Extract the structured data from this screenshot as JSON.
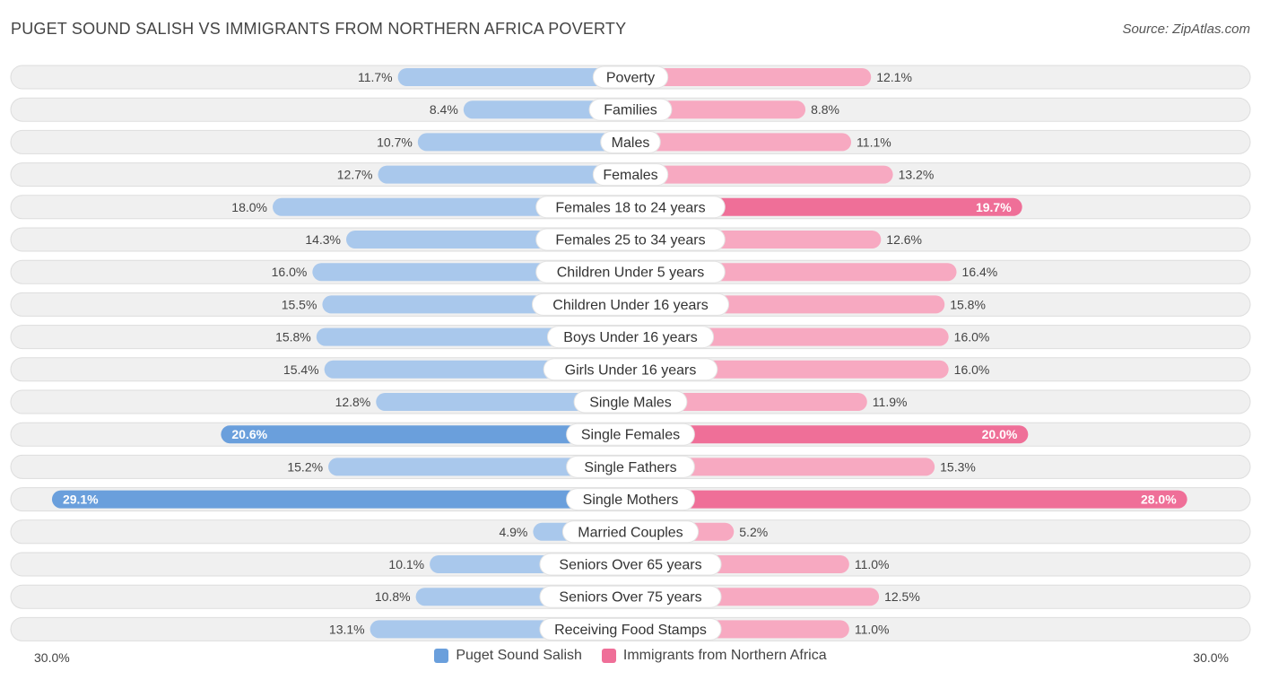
{
  "header": {
    "title": "PUGET SOUND SALISH VS IMMIGRANTS FROM NORTHERN AFRICA POVERTY",
    "source": "Source: ZipAtlas.com"
  },
  "colors": {
    "left_base": "#a9c8ec",
    "left_strong": "#6a9fdc",
    "right_base": "#f7a9c1",
    "right_strong": "#ef6f98",
    "row_bg": "#f0f0f0",
    "row_border": "#dddddd"
  },
  "axis": {
    "left_label": "30.0%",
    "right_label": "30.0%"
  },
  "legend": {
    "left": "Puget Sound Salish",
    "right": "Immigrants from Northern Africa"
  },
  "chart_data": {
    "type": "bar",
    "orientation": "horizontal-diverging",
    "title": "PUGET SOUND SALISH VS IMMIGRANTS FROM NORTHERN AFRICA POVERTY",
    "xlim": [
      -30,
      30
    ],
    "categories": [
      "Poverty",
      "Families",
      "Males",
      "Females",
      "Females 18 to 24 years",
      "Females 25 to 34 years",
      "Children Under 5 years",
      "Children Under 16 years",
      "Boys Under 16 years",
      "Girls Under 16 years",
      "Single Males",
      "Single Females",
      "Single Fathers",
      "Single Mothers",
      "Married Couples",
      "Seniors Over 65 years",
      "Seniors Over 75 years",
      "Receiving Food Stamps"
    ],
    "series": [
      {
        "name": "Puget Sound Salish",
        "values": [
          11.7,
          8.4,
          10.7,
          12.7,
          18.0,
          14.3,
          16.0,
          15.5,
          15.8,
          15.4,
          12.8,
          20.6,
          15.2,
          29.1,
          4.9,
          10.1,
          10.8,
          13.1
        ],
        "labels": [
          "11.7%",
          "8.4%",
          "10.7%",
          "12.7%",
          "18.0%",
          "14.3%",
          "16.0%",
          "15.5%",
          "15.8%",
          "15.4%",
          "12.8%",
          "20.6%",
          "15.2%",
          "29.1%",
          "4.9%",
          "10.1%",
          "10.8%",
          "13.1%"
        ]
      },
      {
        "name": "Immigrants from Northern Africa",
        "values": [
          12.1,
          8.8,
          11.1,
          13.2,
          19.7,
          12.6,
          16.4,
          15.8,
          16.0,
          16.0,
          11.9,
          20.0,
          15.3,
          28.0,
          5.2,
          11.0,
          12.5,
          11.0
        ],
        "labels": [
          "12.1%",
          "8.8%",
          "11.1%",
          "13.2%",
          "19.7%",
          "12.6%",
          "16.4%",
          "15.8%",
          "16.0%",
          "16.0%",
          "11.9%",
          "20.0%",
          "15.3%",
          "28.0%",
          "5.2%",
          "11.0%",
          "12.5%",
          "11.0%"
        ]
      }
    ]
  }
}
